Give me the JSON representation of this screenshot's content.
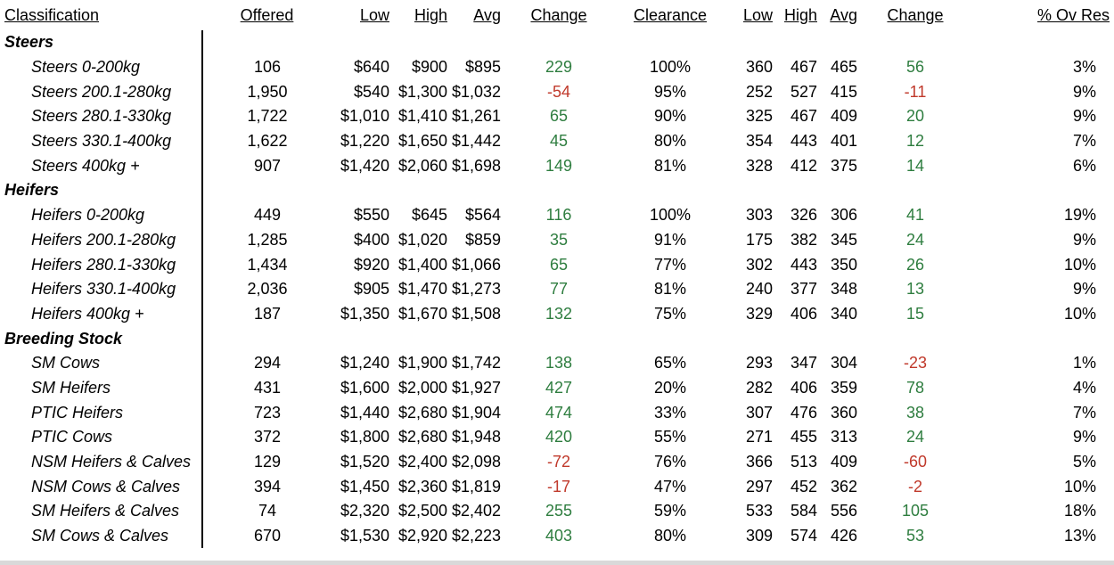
{
  "headers": {
    "classification": "Classification",
    "offered": "Offered",
    "low": "Low",
    "high": "High",
    "avg": "Avg",
    "change": "Change",
    "clearance": "Clearance",
    "low2": "Low",
    "high2": "High",
    "avg2": "Avg",
    "change2": "Change",
    "ov_res": "% Ov Res"
  },
  "sections": [
    {
      "title": "Steers",
      "rows": [
        {
          "name": "Steers 0-200kg",
          "offered": "106",
          "low": "$640",
          "high": "$900",
          "avg": "$895",
          "change": "229",
          "change_dir": "pos",
          "clearance": "100%",
          "low2": "360",
          "high2": "467",
          "avg2": "465",
          "change2": "56",
          "change2_dir": "pos",
          "ov_res": "3%"
        },
        {
          "name": "Steers 200.1-280kg",
          "offered": "1,950",
          "low": "$540",
          "high": "$1,300",
          "avg": "$1,032",
          "change": "-54",
          "change_dir": "neg",
          "clearance": "95%",
          "low2": "252",
          "high2": "527",
          "avg2": "415",
          "change2": "-11",
          "change2_dir": "neg",
          "ov_res": "9%"
        },
        {
          "name": "Steers 280.1-330kg",
          "offered": "1,722",
          "low": "$1,010",
          "high": "$1,410",
          "avg": "$1,261",
          "change": "65",
          "change_dir": "pos",
          "clearance": "90%",
          "low2": "325",
          "high2": "467",
          "avg2": "409",
          "change2": "20",
          "change2_dir": "pos",
          "ov_res": "9%"
        },
        {
          "name": "Steers 330.1-400kg",
          "offered": "1,622",
          "low": "$1,220",
          "high": "$1,650",
          "avg": "$1,442",
          "change": "45",
          "change_dir": "pos",
          "clearance": "80%",
          "low2": "354",
          "high2": "443",
          "avg2": "401",
          "change2": "12",
          "change2_dir": "pos",
          "ov_res": "7%"
        },
        {
          "name": "Steers 400kg +",
          "offered": "907",
          "low": "$1,420",
          "high": "$2,060",
          "avg": "$1,698",
          "change": "149",
          "change_dir": "pos",
          "clearance": "81%",
          "low2": "328",
          "high2": "412",
          "avg2": "375",
          "change2": "14",
          "change2_dir": "pos",
          "ov_res": "6%"
        }
      ]
    },
    {
      "title": "Heifers",
      "rows": [
        {
          "name": "Heifers 0-200kg",
          "offered": "449",
          "low": "$550",
          "high": "$645",
          "avg": "$564",
          "change": "116",
          "change_dir": "pos",
          "clearance": "100%",
          "low2": "303",
          "high2": "326",
          "avg2": "306",
          "change2": "41",
          "change2_dir": "pos",
          "ov_res": "19%"
        },
        {
          "name": "Heifers 200.1-280kg",
          "offered": "1,285",
          "low": "$400",
          "high": "$1,020",
          "avg": "$859",
          "change": "35",
          "change_dir": "pos",
          "clearance": "91%",
          "low2": "175",
          "high2": "382",
          "avg2": "345",
          "change2": "24",
          "change2_dir": "pos",
          "ov_res": "9%"
        },
        {
          "name": "Heifers 280.1-330kg",
          "offered": "1,434",
          "low": "$920",
          "high": "$1,400",
          "avg": "$1,066",
          "change": "65",
          "change_dir": "pos",
          "clearance": "77%",
          "low2": "302",
          "high2": "443",
          "avg2": "350",
          "change2": "26",
          "change2_dir": "pos",
          "ov_res": "10%"
        },
        {
          "name": "Heifers 330.1-400kg",
          "offered": "2,036",
          "low": "$905",
          "high": "$1,470",
          "avg": "$1,273",
          "change": "77",
          "change_dir": "pos",
          "clearance": "81%",
          "low2": "240",
          "high2": "377",
          "avg2": "348",
          "change2": "13",
          "change2_dir": "pos",
          "ov_res": "9%"
        },
        {
          "name": "Heifers 400kg +",
          "offered": "187",
          "low": "$1,350",
          "high": "$1,670",
          "avg": "$1,508",
          "change": "132",
          "change_dir": "pos",
          "clearance": "75%",
          "low2": "329",
          "high2": "406",
          "avg2": "340",
          "change2": "15",
          "change2_dir": "pos",
          "ov_res": "10%"
        }
      ]
    },
    {
      "title": "Breeding Stock",
      "rows": [
        {
          "name": "SM Cows",
          "offered": "294",
          "low": "$1,240",
          "high": "$1,900",
          "avg": "$1,742",
          "change": "138",
          "change_dir": "pos",
          "clearance": "65%",
          "low2": "293",
          "high2": "347",
          "avg2": "304",
          "change2": "-23",
          "change2_dir": "neg",
          "ov_res": "1%"
        },
        {
          "name": "SM Heifers",
          "offered": "431",
          "low": "$1,600",
          "high": "$2,000",
          "avg": "$1,927",
          "change": "427",
          "change_dir": "pos",
          "clearance": "20%",
          "low2": "282",
          "high2": "406",
          "avg2": "359",
          "change2": "78",
          "change2_dir": "pos",
          "ov_res": "4%"
        },
        {
          "name": "PTIC Heifers",
          "offered": "723",
          "low": "$1,440",
          "high": "$2,680",
          "avg": "$1,904",
          "change": "474",
          "change_dir": "pos",
          "clearance": "33%",
          "low2": "307",
          "high2": "476",
          "avg2": "360",
          "change2": "38",
          "change2_dir": "pos",
          "ov_res": "7%"
        },
        {
          "name": "PTIC Cows",
          "offered": "372",
          "low": "$1,800",
          "high": "$2,680",
          "avg": "$1,948",
          "change": "420",
          "change_dir": "pos",
          "clearance": "55%",
          "low2": "271",
          "high2": "455",
          "avg2": "313",
          "change2": "24",
          "change2_dir": "pos",
          "ov_res": "9%"
        },
        {
          "name": "NSM Heifers & Calves",
          "offered": "129",
          "low": "$1,520",
          "high": "$2,400",
          "avg": "$2,098",
          "change": "-72",
          "change_dir": "neg",
          "clearance": "76%",
          "low2": "366",
          "high2": "513",
          "avg2": "409",
          "change2": "-60",
          "change2_dir": "neg",
          "ov_res": "5%"
        },
        {
          "name": "NSM Cows & Calves",
          "offered": "394",
          "low": "$1,450",
          "high": "$2,360",
          "avg": "$1,819",
          "change": "-17",
          "change_dir": "neg",
          "clearance": "47%",
          "low2": "297",
          "high2": "452",
          "avg2": "362",
          "change2": "-2",
          "change2_dir": "neg",
          "ov_res": "10%"
        },
        {
          "name": "SM Heifers & Calves",
          "offered": "74",
          "low": "$2,320",
          "high": "$2,500",
          "avg": "$2,402",
          "change": "255",
          "change_dir": "pos",
          "clearance": "59%",
          "low2": "533",
          "high2": "584",
          "avg2": "556",
          "change2": "105",
          "change2_dir": "pos",
          "ov_res": "18%"
        },
        {
          "name": "SM Cows & Calves",
          "offered": "670",
          "low": "$1,530",
          "high": "$2,920",
          "avg": "$2,223",
          "change": "403",
          "change_dir": "pos",
          "clearance": "80%",
          "low2": "309",
          "high2": "574",
          "avg2": "426",
          "change2": "53",
          "change2_dir": "pos",
          "ov_res": "13%"
        }
      ]
    }
  ]
}
